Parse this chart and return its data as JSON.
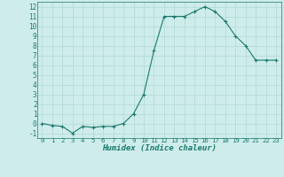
{
  "x": [
    0,
    1,
    2,
    3,
    4,
    5,
    6,
    7,
    8,
    9,
    10,
    11,
    12,
    13,
    14,
    15,
    16,
    17,
    18,
    19,
    20,
    21,
    22,
    23
  ],
  "y": [
    0.0,
    -0.2,
    -0.3,
    -1.0,
    -0.3,
    -0.4,
    -0.3,
    -0.3,
    0.0,
    1.0,
    3.0,
    7.5,
    11.0,
    11.0,
    11.0,
    11.5,
    12.0,
    11.5,
    10.5,
    9.0,
    8.0,
    6.5,
    6.5,
    6.5
  ],
  "xlabel": "Humidex (Indice chaleur)",
  "ylim": [
    -1.5,
    12.5
  ],
  "xlim": [
    -0.5,
    23.5
  ],
  "yticks": [
    -1,
    0,
    1,
    2,
    3,
    4,
    5,
    6,
    7,
    8,
    9,
    10,
    11,
    12
  ],
  "xticks": [
    0,
    1,
    2,
    3,
    4,
    5,
    6,
    7,
    8,
    9,
    10,
    11,
    12,
    13,
    14,
    15,
    16,
    17,
    18,
    19,
    20,
    21,
    22,
    23
  ],
  "line_color": "#1a7a6e",
  "marker_color": "#1a7a6e",
  "bg_color": "#ceecea",
  "grid_color": "#b0d8d4",
  "font_color": "#1a7a6e",
  "xlabel_fontsize": 6.5,
  "tick_fontsize_x": 5.2,
  "tick_fontsize_y": 5.5
}
